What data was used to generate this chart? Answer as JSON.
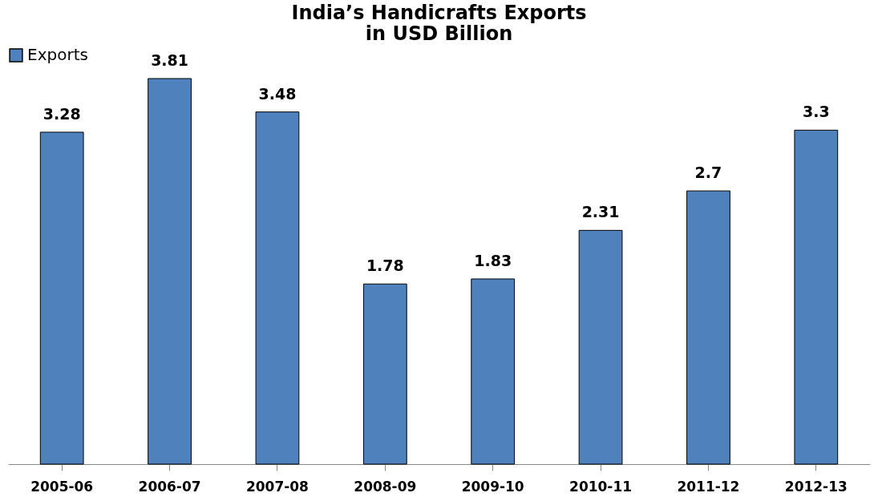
{
  "chart_data": {
    "type": "bar",
    "title": [
      "India’s Handicrafts Exports",
      "in USD Billion"
    ],
    "categories": [
      "2005-06",
      "2006-07",
      "2007-08",
      "2008-09",
      "2009-10",
      "2010-11",
      "2011-12",
      "2012-13"
    ],
    "series": [
      {
        "name": "Exports",
        "color": "#4f81bd",
        "values": [
          3.28,
          3.81,
          3.48,
          1.78,
          1.83,
          2.31,
          2.7,
          3.3
        ]
      }
    ],
    "data_labels": true,
    "legend": "top",
    "grid": false
  }
}
